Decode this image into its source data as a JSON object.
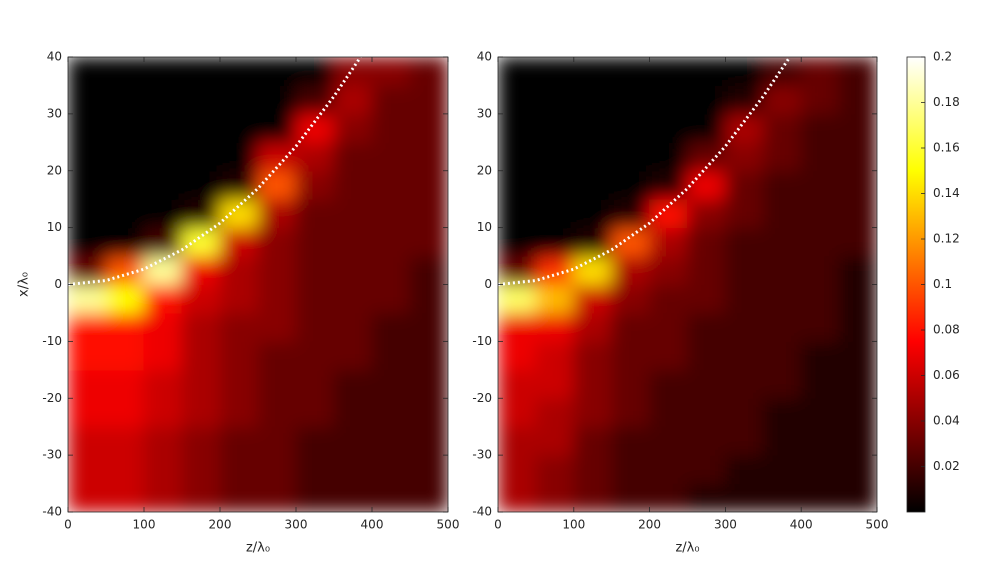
{
  "chart_data": [
    {
      "type": "heatmap",
      "xlabel": "z/λ₀",
      "ylabel": "x/λ₀",
      "xlim": [
        0,
        500
      ],
      "ylim": [
        -40,
        40
      ],
      "xticks": [
        0,
        100,
        200,
        300,
        400,
        500
      ],
      "yticks": [
        -40,
        -30,
        -20,
        -10,
        0,
        10,
        20,
        30,
        40
      ],
      "x_bins": [
        0,
        50,
        100,
        150,
        200,
        250,
        300,
        350,
        400,
        450,
        500
      ],
      "y_bins": [
        -40,
        -35,
        -30,
        -25,
        -20,
        -15,
        -10,
        -5,
        0,
        5,
        10,
        15,
        20,
        25,
        30,
        35,
        40
      ],
      "values": [
        [
          0.06,
          0.06,
          0.06,
          0.07,
          0.07,
          0.08,
          0.08,
          0.18,
          0.03,
          0,
          0,
          0,
          0,
          0,
          0,
          0
        ],
        [
          0.06,
          0.06,
          0.06,
          0.07,
          0.07,
          0.08,
          0.08,
          0.15,
          0.1,
          0,
          0,
          0,
          0,
          0,
          0,
          0
        ],
        [
          0.05,
          0.05,
          0.05,
          0.06,
          0.06,
          0.07,
          0.07,
          0.08,
          0.18,
          0.02,
          0,
          0,
          0,
          0,
          0,
          0
        ],
        [
          0.04,
          0.04,
          0.04,
          0.05,
          0.05,
          0.05,
          0.05,
          0.06,
          0.07,
          0.16,
          0.01,
          0,
          0,
          0,
          0,
          0
        ],
        [
          0.03,
          0.03,
          0.03,
          0.04,
          0.04,
          0.04,
          0.04,
          0.05,
          0.05,
          0.06,
          0.14,
          0.01,
          0,
          0,
          0,
          0
        ],
        [
          0.03,
          0.03,
          0.03,
          0.03,
          0.03,
          0.03,
          0.04,
          0.04,
          0.04,
          0.04,
          0.05,
          0.1,
          0.06,
          0,
          0,
          0
        ],
        [
          0.02,
          0.02,
          0.02,
          0.03,
          0.03,
          0.03,
          0.03,
          0.03,
          0.03,
          0.03,
          0.03,
          0.04,
          0.05,
          0.07,
          0.02,
          0
        ],
        [
          0.02,
          0.02,
          0.02,
          0.02,
          0.02,
          0.03,
          0.03,
          0.03,
          0.03,
          0.03,
          0.03,
          0.03,
          0.03,
          0.04,
          0.05,
          0.04
        ],
        [
          0.02,
          0.02,
          0.02,
          0.02,
          0.02,
          0.02,
          0.02,
          0.03,
          0.03,
          0.03,
          0.03,
          0.03,
          0.03,
          0.03,
          0.03,
          0.04
        ],
        [
          0.02,
          0.02,
          0.02,
          0.02,
          0.02,
          0.02,
          0.02,
          0.02,
          0.02,
          0.03,
          0.03,
          0.03,
          0.03,
          0.03,
          0.03,
          0.03
        ]
      ],
      "curve": {
        "x": [
          0,
          50,
          100,
          150,
          200,
          250,
          300,
          350,
          385
        ],
        "values": [
          0,
          0.7,
          2.7,
          6.1,
          10.8,
          16.9,
          24.3,
          33.1,
          40
        ],
        "color": "#ffffff"
      }
    },
    {
      "type": "heatmap",
      "xlabel": "z/λ₀",
      "xlim": [
        0,
        500
      ],
      "ylim": [
        -40,
        40
      ],
      "xticks": [
        0,
        100,
        200,
        300,
        400,
        500
      ],
      "yticks": [
        -40,
        -30,
        -20,
        -10,
        0,
        10,
        20,
        30,
        40
      ],
      "x_bins": [
        0,
        50,
        100,
        150,
        200,
        250,
        300,
        350,
        400,
        450,
        500
      ],
      "y_bins": [
        -40,
        -35,
        -30,
        -25,
        -20,
        -15,
        -10,
        -5,
        0,
        5,
        10,
        15,
        20,
        25,
        30,
        35,
        40
      ],
      "values": [
        [
          0.05,
          0.05,
          0.05,
          0.06,
          0.06,
          0.07,
          0.07,
          0.17,
          0.03,
          0,
          0,
          0,
          0,
          0,
          0,
          0
        ],
        [
          0.04,
          0.04,
          0.05,
          0.05,
          0.06,
          0.06,
          0.07,
          0.13,
          0.09,
          0,
          0,
          0,
          0,
          0,
          0,
          0
        ],
        [
          0.03,
          0.03,
          0.03,
          0.04,
          0.04,
          0.04,
          0.05,
          0.06,
          0.14,
          0.01,
          0,
          0,
          0,
          0,
          0,
          0
        ],
        [
          0.02,
          0.02,
          0.02,
          0.03,
          0.03,
          0.03,
          0.03,
          0.04,
          0.05,
          0.1,
          0.01,
          0,
          0,
          0,
          0,
          0
        ],
        [
          0.02,
          0.02,
          0.02,
          0.02,
          0.02,
          0.03,
          0.03,
          0.03,
          0.04,
          0.05,
          0.08,
          0.01,
          0,
          0,
          0,
          0
        ],
        [
          0.01,
          0.02,
          0.02,
          0.02,
          0.02,
          0.02,
          0.02,
          0.03,
          0.03,
          0.03,
          0.04,
          0.07,
          0.03,
          0,
          0,
          0
        ],
        [
          0.01,
          0.01,
          0.02,
          0.02,
          0.02,
          0.02,
          0.02,
          0.02,
          0.02,
          0.02,
          0.03,
          0.03,
          0.04,
          0.05,
          0.01,
          0
        ],
        [
          0.01,
          0.01,
          0.01,
          0.01,
          0.02,
          0.02,
          0.02,
          0.02,
          0.02,
          0.02,
          0.02,
          0.02,
          0.03,
          0.03,
          0.04,
          0.02
        ],
        [
          0.01,
          0.01,
          0.01,
          0.01,
          0.01,
          0.01,
          0.02,
          0.02,
          0.02,
          0.02,
          0.02,
          0.02,
          0.02,
          0.02,
          0.03,
          0.03
        ],
        [
          0.01,
          0.01,
          0.01,
          0.01,
          0.01,
          0.01,
          0.01,
          0.01,
          0.01,
          0.02,
          0.02,
          0.02,
          0.02,
          0.02,
          0.02,
          0.02
        ]
      ],
      "curve": {
        "x": [
          0,
          50,
          100,
          150,
          200,
          250,
          300,
          350,
          385
        ],
        "values": [
          0,
          0.7,
          2.7,
          6.1,
          10.8,
          16.9,
          24.3,
          33.1,
          40
        ],
        "color": "#ffffff"
      }
    },
    {
      "type": "colorbar",
      "colormap": "hot",
      "lim": [
        0,
        0.2
      ],
      "ticks": [
        0.02,
        0.04,
        0.06,
        0.08,
        0.1,
        0.12,
        0.14,
        0.16,
        0.18,
        0.2
      ]
    }
  ]
}
